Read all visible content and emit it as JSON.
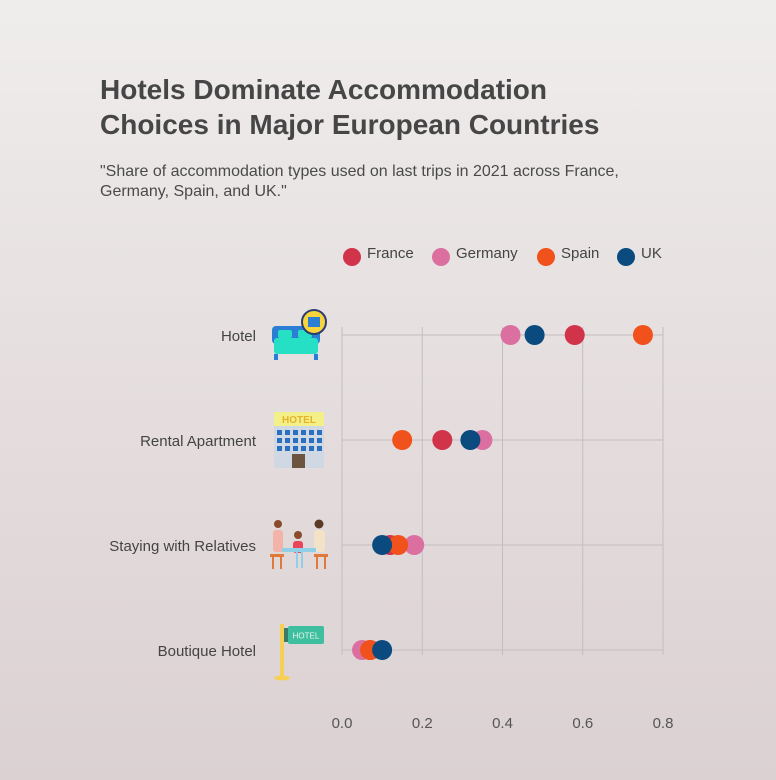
{
  "title": "Hotels Dominate Accommodation Choices in Major European Countries",
  "subtitle": "\"Share of accommodation types used on last trips in 2021 across France, Germany, Spain, and UK.\"",
  "colors": {
    "France": "#d0334a",
    "Germany": "#db6fa0",
    "Spain": "#f1511b",
    "UK": "#0a4a7e"
  },
  "chart_data": {
    "type": "scatter",
    "title": "Hotels Dominate Accommodation Choices in Major European Countries",
    "subtitle": "\"Share of accommodation types used on last trips in 2021 across France, Germany, Spain, and UK.\"",
    "categories": [
      "Hotel",
      "Rental Apartment",
      "Staying with Relatives",
      "Boutique Hotel"
    ],
    "category_icons": [
      "hotel-bed-icon",
      "hotel-building-icon",
      "family-table-icon",
      "hotel-sign-icon"
    ],
    "xlim": [
      0,
      0.8
    ],
    "xticks": [
      "0.0",
      "0.2",
      "0.4",
      "0.6",
      "0.8"
    ],
    "xtick_values": [
      0,
      0.2,
      0.4,
      0.6,
      0.8
    ],
    "grid": true,
    "legend_position": "top",
    "series": [
      {
        "name": "France",
        "values": [
          0.58,
          0.25,
          0.12,
          0.07
        ]
      },
      {
        "name": "Germany",
        "values": [
          0.42,
          0.35,
          0.18,
          0.05
        ]
      },
      {
        "name": "Spain",
        "values": [
          0.75,
          0.15,
          0.14,
          0.07
        ]
      },
      {
        "name": "UK",
        "values": [
          0.48,
          0.32,
          0.1,
          0.1
        ]
      }
    ]
  }
}
